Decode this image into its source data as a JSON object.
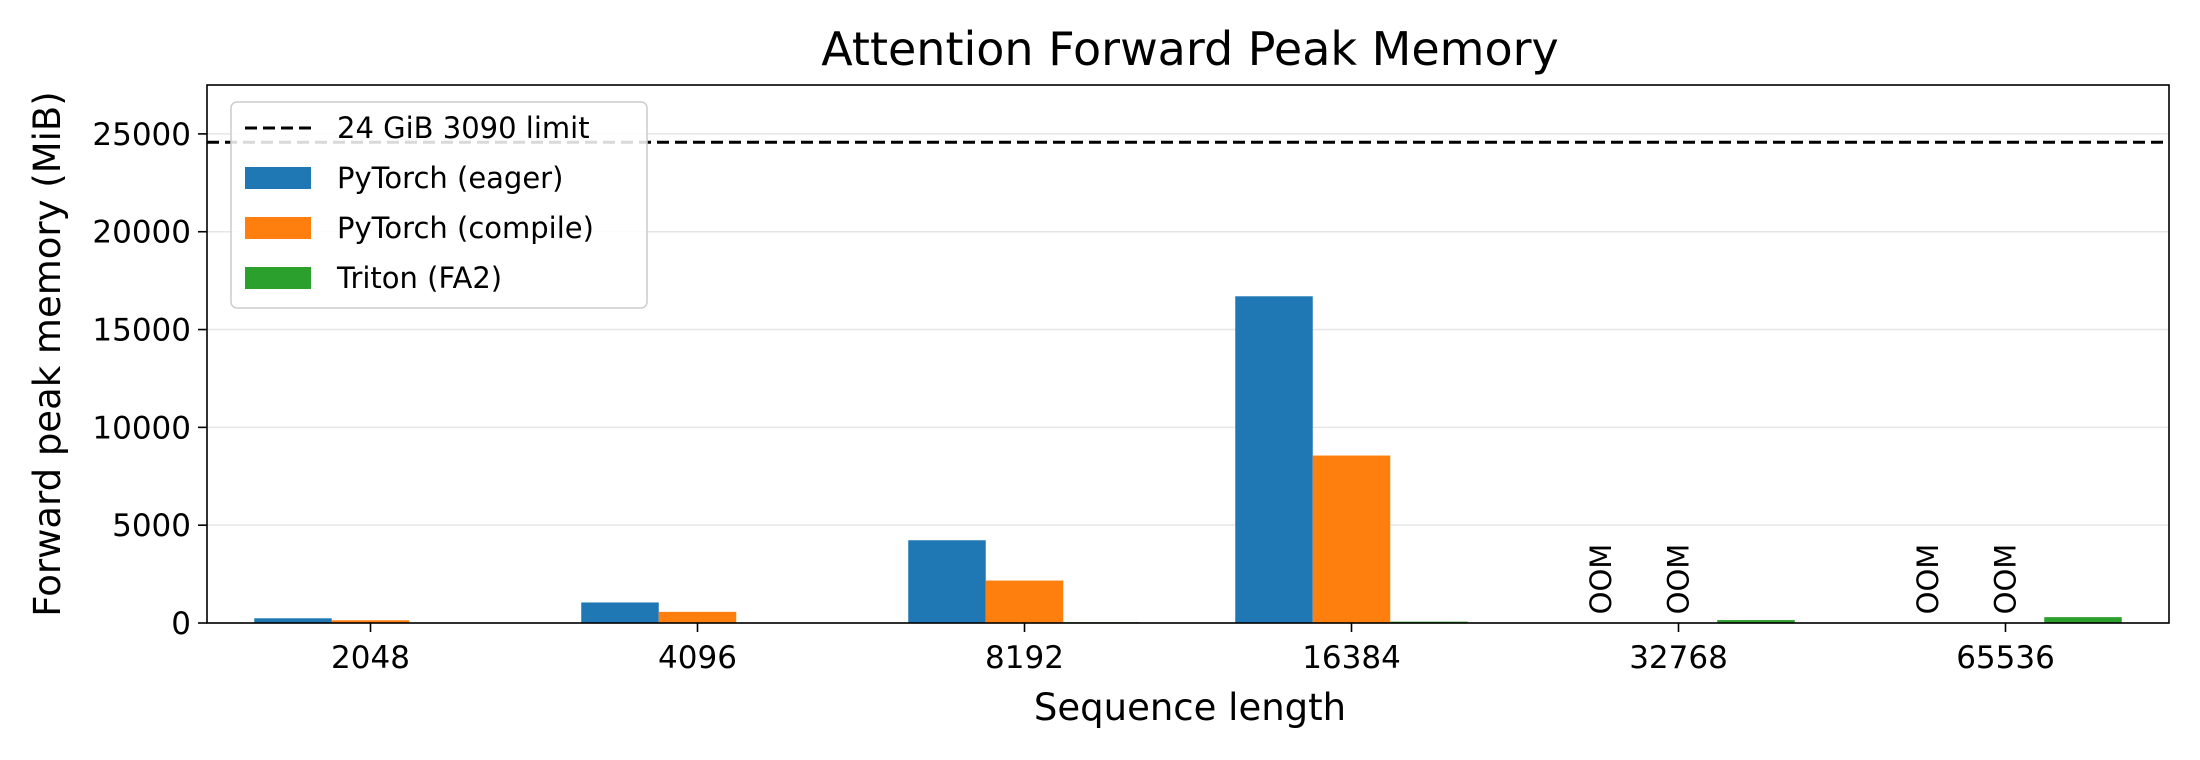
{
  "chart_data": {
    "type": "bar",
    "title": "Attention Forward Peak Memory",
    "xlabel": "Sequence length",
    "ylabel": "Forward peak memory (MiB)",
    "ylim": [
      0,
      27500
    ],
    "yticks": [
      0,
      5000,
      10000,
      15000,
      20000,
      25000
    ],
    "grid": "y",
    "legend_position": "top-left",
    "categories": [
      "2048",
      "4096",
      "8192",
      "16384",
      "32768",
      "65536"
    ],
    "series": [
      {
        "name": "PyTorch (eager)",
        "color": "#1f77b4",
        "values": [
          240,
          1050,
          4230,
          16700,
          null,
          null
        ]
      },
      {
        "name": "PyTorch (compile)",
        "color": "#ff7f0e",
        "values": [
          140,
          570,
          2170,
          8560,
          null,
          null
        ]
      },
      {
        "name": "Triton (FA2)",
        "color": "#2ca02c",
        "values": [
          10,
          20,
          40,
          70,
          150,
          300
        ]
      }
    ],
    "reference_line": {
      "name": "24 GiB 3090 limit",
      "value": 24576,
      "color": "#000000",
      "style": "dashed"
    },
    "annotations": [
      {
        "category": "32768",
        "series": "PyTorch (eager)",
        "text": "OOM"
      },
      {
        "category": "32768",
        "series": "PyTorch (compile)",
        "text": "OOM"
      },
      {
        "category": "65536",
        "series": "PyTorch (eager)",
        "text": "OOM"
      },
      {
        "category": "65536",
        "series": "PyTorch (compile)",
        "text": "OOM"
      }
    ]
  }
}
